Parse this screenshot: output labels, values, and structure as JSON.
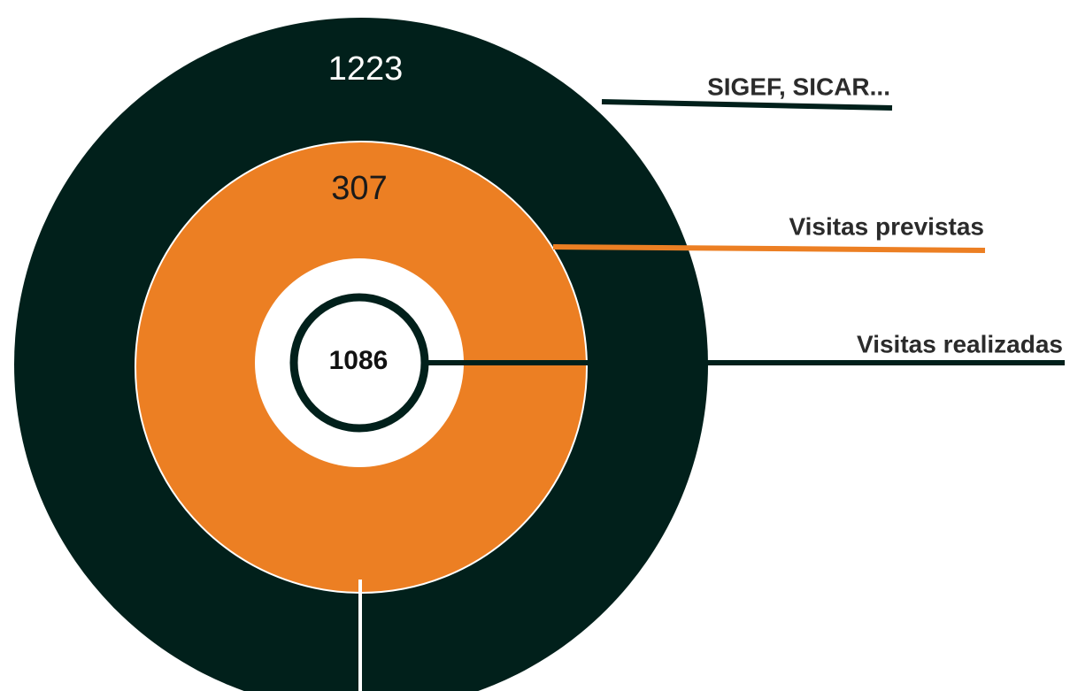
{
  "rings": [
    {
      "value": 1223,
      "label": "SIGEF, SICAR..."
    },
    {
      "value": 307,
      "label": "Visitas previstas"
    },
    {
      "value": 1086,
      "label": "Visitas realizadas"
    }
  ]
}
